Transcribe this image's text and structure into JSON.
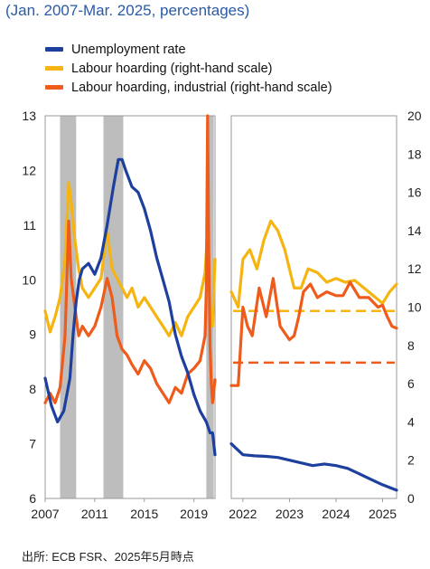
{
  "subtitle": "(Jan. 2007-Mar. 2025, percentages)",
  "source": "出所: ECB FSR、2025年5月時点",
  "chart_data": {
    "type": "line",
    "title": "",
    "xlabel": "",
    "ylabel": "",
    "left_axis": {
      "ylim": [
        6,
        13
      ],
      "ticks": [
        "6",
        "7",
        "8",
        "9",
        "10",
        "11",
        "12",
        "13"
      ]
    },
    "right_axis": {
      "ylim": [
        0,
        20
      ],
      "ticks": [
        "0",
        "2",
        "4",
        "6",
        "8",
        "10",
        "12",
        "14",
        "16",
        "18",
        "20"
      ]
    },
    "panels": [
      {
        "name": "left",
        "xlim": [
          2007,
          2020.7
        ],
        "xticks": [
          "2007",
          "2011",
          "2015",
          "2019"
        ]
      },
      {
        "name": "right",
        "xlim": [
          2021.75,
          2025.3
        ],
        "xticks": [
          "2022",
          "2023",
          "2024",
          "2025"
        ]
      }
    ],
    "legend_position": "top-left",
    "colors": {
      "unemployment": "#1d3f9e",
      "hoarding": "#f5b40f",
      "hoarding_industrial": "#ee5b1a",
      "recession": "#bdbdbd"
    },
    "recessions": [
      [
        2008.2,
        2009.5
      ],
      [
        2011.7,
        2013.3
      ],
      [
        2020.0,
        2020.6
      ]
    ],
    "series": [
      {
        "name": "Unemployment rate",
        "axis": "left",
        "x": [
          2007.0,
          2007.5,
          2008.0,
          2008.5,
          2009.0,
          2009.25,
          2009.5,
          2009.75,
          2010.0,
          2010.5,
          2011.0,
          2011.5,
          2012.0,
          2012.5,
          2012.9,
          2013.2,
          2013.5,
          2014.0,
          2014.5,
          2015.0,
          2015.5,
          2016.0,
          2016.5,
          2017.0,
          2017.5,
          2018.0,
          2018.5,
          2019.0,
          2019.5,
          2020.0,
          2020.3,
          2020.5,
          2020.7
        ],
        "y": [
          8.2,
          7.7,
          7.4,
          7.6,
          8.2,
          9.0,
          9.6,
          10.0,
          10.2,
          10.3,
          10.1,
          10.4,
          11.0,
          11.7,
          12.2,
          12.2,
          12.0,
          11.7,
          11.6,
          11.3,
          10.9,
          10.4,
          10.0,
          9.6,
          9.0,
          8.6,
          8.3,
          7.9,
          7.6,
          7.4,
          7.2,
          7.2,
          6.8
        ]
      },
      {
        "name": "Labour hoarding (right-hand scale)",
        "axis": "right",
        "x": [
          2007.0,
          2007.4,
          2007.8,
          2008.2,
          2008.6,
          2008.9,
          2009.1,
          2009.4,
          2009.7,
          2010.0,
          2010.5,
          2011.0,
          2011.5,
          2012.0,
          2012.4,
          2012.8,
          2013.2,
          2013.6,
          2014.0,
          2014.5,
          2015.0,
          2015.5,
          2016.0,
          2016.5,
          2017.0,
          2017.5,
          2018.0,
          2018.5,
          2019.0,
          2019.5,
          2019.9,
          2020.1,
          2020.3,
          2020.5,
          2020.7
        ],
        "y": [
          9.8,
          8.7,
          9.5,
          10.5,
          12.5,
          16.5,
          15.5,
          13.5,
          12.0,
          11.0,
          10.5,
          11.0,
          11.5,
          14.0,
          12.0,
          11.5,
          11.0,
          10.5,
          11.0,
          10.0,
          10.5,
          10.0,
          9.5,
          9.0,
          8.5,
          9.2,
          8.5,
          9.5,
          10.0,
          10.5,
          11.8,
          14.0,
          10.0,
          9.0,
          12.5
        ]
      },
      {
        "name": "Labour hoarding, industrial (right-hand scale)",
        "axis": "right",
        "x": [
          2007.0,
          2007.4,
          2007.8,
          2008.2,
          2008.6,
          2008.9,
          2009.1,
          2009.4,
          2009.7,
          2010.0,
          2010.5,
          2011.0,
          2011.5,
          2012.0,
          2012.4,
          2012.8,
          2013.2,
          2013.6,
          2014.0,
          2014.5,
          2015.0,
          2015.5,
          2016.0,
          2016.5,
          2017.0,
          2017.5,
          2018.0,
          2018.5,
          2019.0,
          2019.5,
          2019.9,
          2020.0,
          2020.1,
          2020.2,
          2020.3,
          2020.4,
          2020.5,
          2020.7
        ],
        "y": [
          5.0,
          5.5,
          5.0,
          5.8,
          8.5,
          14.5,
          11.5,
          10.0,
          8.5,
          9.0,
          8.5,
          9.0,
          10.0,
          11.5,
          10.5,
          8.5,
          7.8,
          7.5,
          7.0,
          6.5,
          7.2,
          6.8,
          6.0,
          5.5,
          5.0,
          5.8,
          5.5,
          6.5,
          6.8,
          7.2,
          8.5,
          11.0,
          20.0,
          13.0,
          8.0,
          6.0,
          5.0,
          6.2
        ]
      },
      {
        "name": "Labour hoarding",
        "axis": "right",
        "panel": "right",
        "x": [
          2021.75,
          2021.9,
          2022.0,
          2022.15,
          2022.3,
          2022.45,
          2022.6,
          2022.75,
          2022.9,
          2023.0,
          2023.1,
          2023.25,
          2023.4,
          2023.6,
          2023.8,
          2024.0,
          2024.2,
          2024.4,
          2024.6,
          2024.8,
          2025.0,
          2025.15,
          2025.3
        ],
        "y": [
          10.8,
          10.0,
          12.5,
          13.0,
          12.0,
          13.5,
          14.5,
          14.0,
          13.0,
          12.0,
          11.0,
          11.0,
          12.0,
          11.8,
          11.3,
          11.5,
          11.3,
          11.4,
          11.0,
          10.6,
          10.2,
          10.8,
          11.2
        ]
      },
      {
        "name": "Labour hoarding, industrial",
        "axis": "right",
        "panel": "right",
        "x": [
          2021.75,
          2021.9,
          2022.0,
          2022.1,
          2022.2,
          2022.35,
          2022.5,
          2022.65,
          2022.8,
          2023.0,
          2023.1,
          2023.2,
          2023.3,
          2023.45,
          2023.6,
          2023.8,
          2024.0,
          2024.15,
          2024.3,
          2024.5,
          2024.7,
          2024.9,
          2025.0,
          2025.1,
          2025.2,
          2025.3
        ],
        "y": [
          5.9,
          5.9,
          10.0,
          9.0,
          8.5,
          11.0,
          9.5,
          11.5,
          9.0,
          8.3,
          8.5,
          9.5,
          10.8,
          11.2,
          10.5,
          10.8,
          10.6,
          10.6,
          11.3,
          10.5,
          10.5,
          10.0,
          10.1,
          9.5,
          9.0,
          8.9
        ]
      },
      {
        "name": "Unemployment rate",
        "axis": "left",
        "panel": "right",
        "x": [
          2021.75,
          2022.0,
          2022.25,
          2022.5,
          2022.75,
          2023.0,
          2023.25,
          2023.5,
          2023.75,
          2024.0,
          2024.25,
          2024.5,
          2024.75,
          2025.0,
          2025.3
        ],
        "y": [
          7.0,
          6.8,
          6.78,
          6.77,
          6.75,
          6.7,
          6.65,
          6.6,
          6.63,
          6.6,
          6.55,
          6.45,
          6.35,
          6.25,
          6.15
        ]
      }
    ],
    "reference_lines": [
      {
        "series": "Labour hoarding",
        "axis": "right",
        "y": 9.8
      },
      {
        "series": "Labour hoarding, industrial",
        "axis": "right",
        "y": 7.1
      }
    ]
  }
}
